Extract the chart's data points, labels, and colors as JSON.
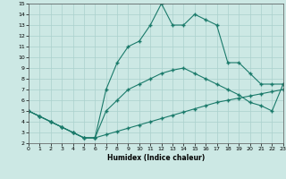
{
  "xlabel": "Humidex (Indice chaleur)",
  "xlim": [
    0,
    23
  ],
  "ylim": [
    2,
    15
  ],
  "xticks": [
    0,
    1,
    2,
    3,
    4,
    5,
    6,
    7,
    8,
    9,
    10,
    11,
    12,
    13,
    14,
    15,
    16,
    17,
    18,
    19,
    20,
    21,
    22,
    23
  ],
  "yticks": [
    2,
    3,
    4,
    5,
    6,
    7,
    8,
    9,
    10,
    11,
    12,
    13,
    14,
    15
  ],
  "line_color": "#1a7a6a",
  "bg_color": "#cce8e4",
  "grid_color": "#aad0cc",
  "line1_x": [
    0,
    1,
    2,
    3,
    4,
    5,
    6,
    7,
    8,
    9,
    10,
    11,
    12,
    13,
    14,
    15,
    16,
    17,
    18,
    19,
    20,
    21,
    22,
    23
  ],
  "line1_y": [
    5.0,
    4.5,
    4.0,
    3.5,
    3.0,
    2.5,
    2.5,
    2.8,
    3.1,
    3.4,
    3.7,
    4.0,
    4.3,
    4.6,
    4.9,
    5.2,
    5.5,
    5.8,
    6.0,
    6.2,
    6.4,
    6.6,
    6.8,
    7.0
  ],
  "line2_x": [
    0,
    1,
    2,
    3,
    4,
    5,
    6,
    7,
    8,
    9,
    10,
    11,
    12,
    13,
    14,
    15,
    16,
    17,
    18,
    19,
    20,
    21,
    22,
    23
  ],
  "line2_y": [
    5.0,
    4.5,
    4.0,
    3.5,
    3.0,
    2.5,
    2.5,
    5.0,
    6.0,
    7.0,
    7.5,
    8.0,
    8.5,
    8.8,
    9.0,
    8.5,
    8.0,
    7.5,
    7.0,
    6.5,
    5.8,
    5.5,
    5.0,
    7.5
  ],
  "line3_x": [
    0,
    1,
    2,
    3,
    4,
    5,
    6,
    7,
    8,
    9,
    10,
    11,
    12,
    13,
    14,
    15,
    16,
    17,
    18,
    19,
    20,
    21,
    22,
    23
  ],
  "line3_y": [
    5.0,
    4.5,
    4.0,
    3.5,
    3.0,
    2.5,
    2.5,
    7.0,
    9.5,
    11.0,
    11.5,
    13.0,
    15.0,
    13.0,
    13.0,
    14.0,
    13.5,
    13.0,
    9.5,
    9.5,
    8.5,
    7.5,
    7.5,
    7.5
  ]
}
